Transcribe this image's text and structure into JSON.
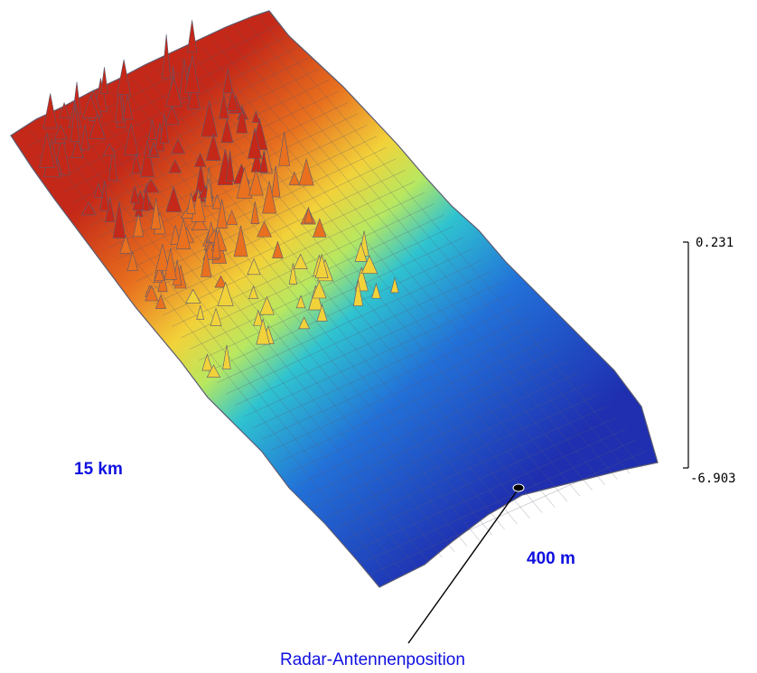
{
  "labels": {
    "range_label": "15 km",
    "width_label": "400 m",
    "antenna_label": "Radar-Antennenposition"
  },
  "color_scale": {
    "max_label": "0.231",
    "min_label": "-6.903",
    "max_value": 0.231,
    "min_value": -6.903
  },
  "surface": {
    "colormap": [
      "#1f2fb0",
      "#2270d8",
      "#2fc3d0",
      "#b8e860",
      "#f2d23a",
      "#e8701e",
      "#c42818"
    ],
    "mesh_line_color": "#5a5a70"
  }
}
